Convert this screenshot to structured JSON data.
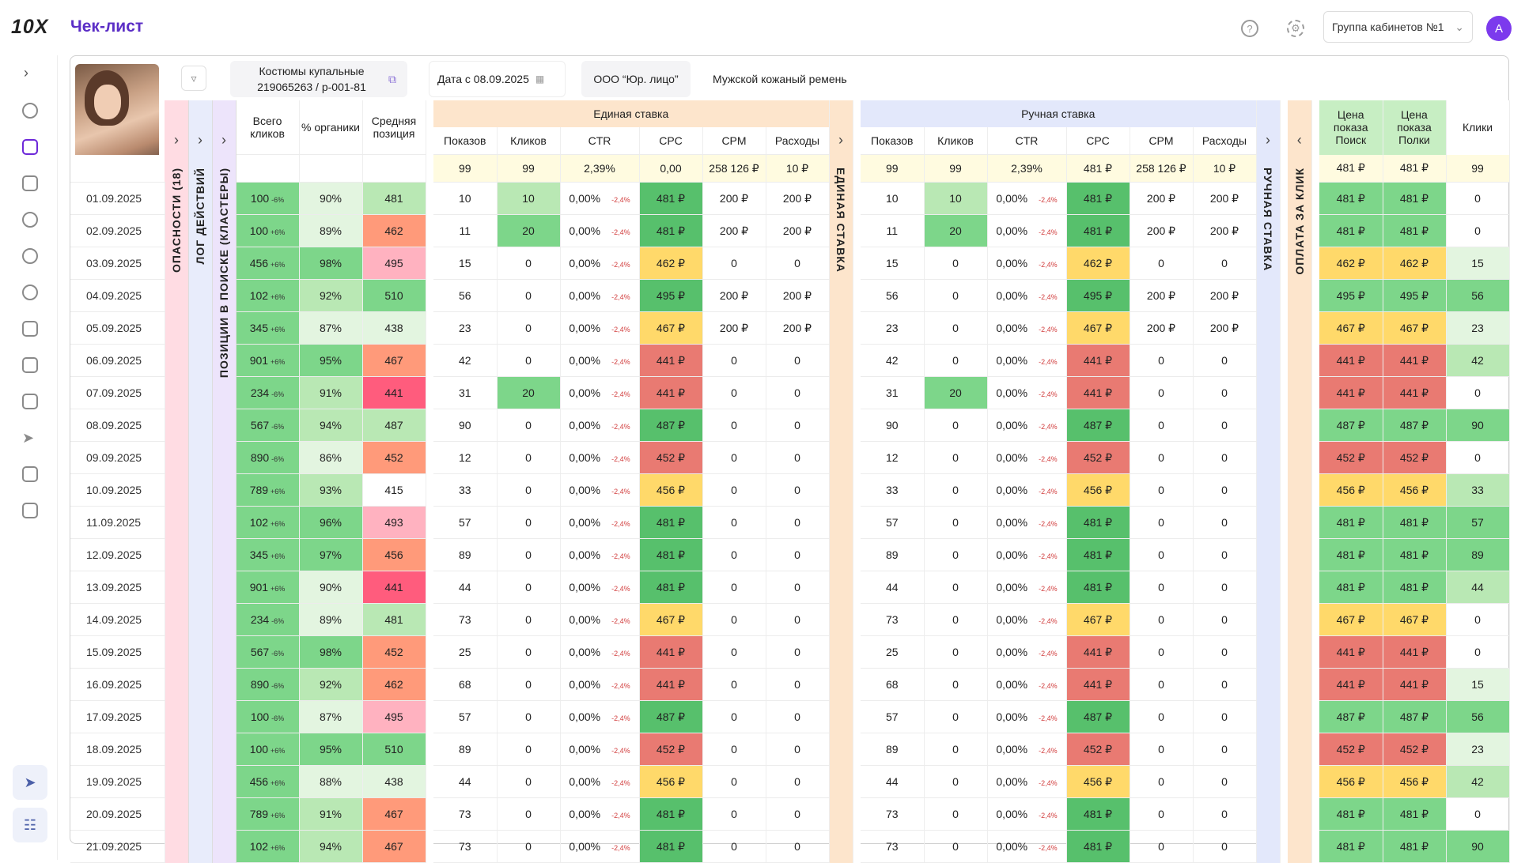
{
  "app": {
    "logo": "10X",
    "title": "Чек-лист"
  },
  "header": {
    "help_icon": "?",
    "settings_icon": "⚙",
    "group_label": "Группа кабинетов №1",
    "avatar_letter": "A"
  },
  "toolbar": {
    "product_name": "Костюмы купальные",
    "product_code": "219065263 / p-001-81",
    "date_prefix": "Дата с",
    "date_value": "08.09.2025",
    "legal_entity": "ООО “Юр. лицо”",
    "product_other": "Мужской кожаный ремень"
  },
  "side_strips": {
    "dangers": "ОПАСНОСТИ (18)",
    "log": "ЛОГ ДЕЙСТВИЙ",
    "positions": "ПОЗИЦИИ В ПОИСКЕ (КЛАСТЕРЫ)"
  },
  "organic": {
    "h_clicks": "Всего кликов",
    "h_organic": "% органики",
    "h_position": "Средняя позиция"
  },
  "unified": {
    "title": "Единая ставка",
    "strip": "ЕДИНАЯ СТАВКА",
    "columns": [
      "Показов",
      "Кликов",
      "CTR",
      "CPC",
      "CPM",
      "Расходы"
    ],
    "totals": [
      "99",
      "99",
      "2,39%",
      "0,00",
      "258 126 ₽",
      "10 ₽"
    ]
  },
  "manual": {
    "title": "Ручная ставка",
    "strip": "РУЧНАЯ СТАВКА",
    "columns": [
      "Показов",
      "Кликов",
      "CTR",
      "CPC",
      "CPM",
      "Расходы"
    ],
    "totals": [
      "99",
      "99",
      "2,39%",
      "481 ₽",
      "258 126 ₽",
      "10 ₽"
    ]
  },
  "cpc": {
    "strip": "ОПЛАТА ЗА КЛИК",
    "h_search": "Цена показа Поиск",
    "h_shelves": "Цена показа Полки",
    "h_clicks": "Клики",
    "totals": [
      "481 ₽",
      "481 ₽",
      "99"
    ]
  },
  "colors": {
    "accent": "#6d28d9",
    "title": "#5b2ec6",
    "unified_bg": "#fde5cc",
    "manual_bg": "#e3e8fb",
    "cpc_strip_bg": "#fde5cc"
  },
  "rows": [
    {
      "date": "01.09.2025",
      "clicks": "100",
      "d": "-6%",
      "org": "90%",
      "pos": "481",
      "u_show": "10",
      "u_click": "10",
      "ctr": "0,00%",
      "ctr_d": "-2,4%",
      "cpc": "481 ₽",
      "cpm": "200 ₽",
      "exp": "200 ₽",
      "m_show": "10",
      "m_click": "10",
      "m_cpc": "481 ₽",
      "m_cpm": "200 ₽",
      "m_exp": "200 ₽",
      "ps": "481 ₽",
      "pp": "481 ₽",
      "kl": "0"
    },
    {
      "date": "02.09.2025",
      "clicks": "100",
      "d": "+6%",
      "org": "89%",
      "pos": "462",
      "u_show": "11",
      "u_click": "20",
      "ctr": "0,00%",
      "ctr_d": "-2,4%",
      "cpc": "481 ₽",
      "cpm": "200 ₽",
      "exp": "200 ₽",
      "m_show": "11",
      "m_click": "20",
      "m_cpc": "481 ₽",
      "m_cpm": "200 ₽",
      "m_exp": "200 ₽",
      "ps": "481 ₽",
      "pp": "481 ₽",
      "kl": "0"
    },
    {
      "date": "03.09.2025",
      "clicks": "456",
      "d": "+6%",
      "org": "98%",
      "pos": "495",
      "u_show": "15",
      "u_click": "0",
      "ctr": "0,00%",
      "ctr_d": "-2,4%",
      "cpc": "462 ₽",
      "cpm": "0",
      "exp": "0",
      "m_show": "15",
      "m_click": "0",
      "m_cpc": "462 ₽",
      "m_cpm": "0",
      "m_exp": "0",
      "ps": "462 ₽",
      "pp": "462 ₽",
      "kl": "15"
    },
    {
      "date": "04.09.2025",
      "clicks": "102",
      "d": "+6%",
      "org": "92%",
      "pos": "510",
      "u_show": "56",
      "u_click": "0",
      "ctr": "0,00%",
      "ctr_d": "-2,4%",
      "cpc": "495 ₽",
      "cpm": "200 ₽",
      "exp": "200 ₽",
      "m_show": "56",
      "m_click": "0",
      "m_cpc": "495 ₽",
      "m_cpm": "200 ₽",
      "m_exp": "200 ₽",
      "ps": "495 ₽",
      "pp": "495 ₽",
      "kl": "56"
    },
    {
      "date": "05.09.2025",
      "clicks": "345",
      "d": "+6%",
      "org": "87%",
      "pos": "438",
      "u_show": "23",
      "u_click": "0",
      "ctr": "0,00%",
      "ctr_d": "-2,4%",
      "cpc": "467 ₽",
      "cpm": "200 ₽",
      "exp": "200 ₽",
      "m_show": "23",
      "m_click": "0",
      "m_cpc": "467 ₽",
      "m_cpm": "200 ₽",
      "m_exp": "200 ₽",
      "ps": "467 ₽",
      "pp": "467 ₽",
      "kl": "23"
    },
    {
      "date": "06.09.2025",
      "clicks": "901",
      "d": "+6%",
      "org": "95%",
      "pos": "467",
      "u_show": "42",
      "u_click": "0",
      "ctr": "0,00%",
      "ctr_d": "-2,4%",
      "cpc": "441 ₽",
      "cpm": "0",
      "exp": "0",
      "m_show": "42",
      "m_click": "0",
      "m_cpc": "441 ₽",
      "m_cpm": "0",
      "m_exp": "0",
      "ps": "441 ₽",
      "pp": "441 ₽",
      "kl": "42"
    },
    {
      "date": "07.09.2025",
      "clicks": "234",
      "d": "-6%",
      "org": "91%",
      "pos": "441",
      "u_show": "31",
      "u_click": "20",
      "ctr": "0,00%",
      "ctr_d": "-2,4%",
      "cpc": "441 ₽",
      "cpm": "0",
      "exp": "0",
      "m_show": "31",
      "m_click": "20",
      "m_cpc": "441 ₽",
      "m_cpm": "0",
      "m_exp": "0",
      "ps": "441 ₽",
      "pp": "441 ₽",
      "kl": "0"
    },
    {
      "date": "08.09.2025",
      "clicks": "567",
      "d": "-6%",
      "org": "94%",
      "pos": "487",
      "u_show": "90",
      "u_click": "0",
      "ctr": "0,00%",
      "ctr_d": "-2,4%",
      "cpc": "487 ₽",
      "cpm": "0",
      "exp": "0",
      "m_show": "90",
      "m_click": "0",
      "m_cpc": "487 ₽",
      "m_cpm": "0",
      "m_exp": "0",
      "ps": "487 ₽",
      "pp": "487 ₽",
      "kl": "90"
    },
    {
      "date": "09.09.2025",
      "clicks": "890",
      "d": "-6%",
      "org": "86%",
      "pos": "452",
      "u_show": "12",
      "u_click": "0",
      "ctr": "0,00%",
      "ctr_d": "-2,4%",
      "cpc": "452 ₽",
      "cpm": "0",
      "exp": "0",
      "m_show": "12",
      "m_click": "0",
      "m_cpc": "452 ₽",
      "m_cpm": "0",
      "m_exp": "0",
      "ps": "452 ₽",
      "pp": "452 ₽",
      "kl": "0"
    },
    {
      "date": "10.09.2025",
      "clicks": "789",
      "d": "+6%",
      "org": "93%",
      "pos": "415",
      "u_show": "33",
      "u_click": "0",
      "ctr": "0,00%",
      "ctr_d": "-2,4%",
      "cpc": "456 ₽",
      "cpm": "0",
      "exp": "0",
      "m_show": "33",
      "m_click": "0",
      "m_cpc": "456 ₽",
      "m_cpm": "0",
      "m_exp": "0",
      "ps": "456 ₽",
      "pp": "456 ₽",
      "kl": "33"
    },
    {
      "date": "11.09.2025",
      "clicks": "102",
      "d": "+6%",
      "org": "96%",
      "pos": "493",
      "u_show": "57",
      "u_click": "0",
      "ctr": "0,00%",
      "ctr_d": "-2,4%",
      "cpc": "481 ₽",
      "cpm": "0",
      "exp": "0",
      "m_show": "57",
      "m_click": "0",
      "m_cpc": "481 ₽",
      "m_cpm": "0",
      "m_exp": "0",
      "ps": "481 ₽",
      "pp": "481 ₽",
      "kl": "57"
    },
    {
      "date": "12.09.2025",
      "clicks": "345",
      "d": "+6%",
      "org": "97%",
      "pos": "456",
      "u_show": "89",
      "u_click": "0",
      "ctr": "0,00%",
      "ctr_d": "-2,4%",
      "cpc": "481 ₽",
      "cpm": "0",
      "exp": "0",
      "m_show": "89",
      "m_click": "0",
      "m_cpc": "481 ₽",
      "m_cpm": "0",
      "m_exp": "0",
      "ps": "481 ₽",
      "pp": "481 ₽",
      "kl": "89"
    },
    {
      "date": "13.09.2025",
      "clicks": "901",
      "d": "+6%",
      "org": "90%",
      "pos": "441",
      "u_show": "44",
      "u_click": "0",
      "ctr": "0,00%",
      "ctr_d": "-2,4%",
      "cpc": "481 ₽",
      "cpm": "0",
      "exp": "0",
      "m_show": "44",
      "m_click": "0",
      "m_cpc": "481 ₽",
      "m_cpm": "0",
      "m_exp": "0",
      "ps": "481 ₽",
      "pp": "481 ₽",
      "kl": "44"
    },
    {
      "date": "14.09.2025",
      "clicks": "234",
      "d": "-6%",
      "org": "89%",
      "pos": "481",
      "u_show": "73",
      "u_click": "0",
      "ctr": "0,00%",
      "ctr_d": "-2,4%",
      "cpc": "467 ₽",
      "cpm": "0",
      "exp": "0",
      "m_show": "73",
      "m_click": "0",
      "m_cpc": "467 ₽",
      "m_cpm": "0",
      "m_exp": "0",
      "ps": "467 ₽",
      "pp": "467 ₽",
      "kl": "0"
    },
    {
      "date": "15.09.2025",
      "clicks": "567",
      "d": "-6%",
      "org": "98%",
      "pos": "452",
      "u_show": "25",
      "u_click": "0",
      "ctr": "0,00%",
      "ctr_d": "-2,4%",
      "cpc": "441 ₽",
      "cpm": "0",
      "exp": "0",
      "m_show": "25",
      "m_click": "0",
      "m_cpc": "441 ₽",
      "m_cpm": "0",
      "m_exp": "0",
      "ps": "441 ₽",
      "pp": "441 ₽",
      "kl": "0"
    },
    {
      "date": "16.09.2025",
      "clicks": "890",
      "d": "-6%",
      "org": "92%",
      "pos": "462",
      "u_show": "68",
      "u_click": "0",
      "ctr": "0,00%",
      "ctr_d": "-2,4%",
      "cpc": "441 ₽",
      "cpm": "0",
      "exp": "0",
      "m_show": "68",
      "m_click": "0",
      "m_cpc": "441 ₽",
      "m_cpm": "0",
      "m_exp": "0",
      "ps": "441 ₽",
      "pp": "441 ₽",
      "kl": "15"
    },
    {
      "date": "17.09.2025",
      "clicks": "100",
      "d": "-6%",
      "org": "87%",
      "pos": "495",
      "u_show": "57",
      "u_click": "0",
      "ctr": "0,00%",
      "ctr_d": "-2,4%",
      "cpc": "487 ₽",
      "cpm": "0",
      "exp": "0",
      "m_show": "57",
      "m_click": "0",
      "m_cpc": "487 ₽",
      "m_cpm": "0",
      "m_exp": "0",
      "ps": "487 ₽",
      "pp": "487 ₽",
      "kl": "56"
    },
    {
      "date": "18.09.2025",
      "clicks": "100",
      "d": "+6%",
      "org": "95%",
      "pos": "510",
      "u_show": "89",
      "u_click": "0",
      "ctr": "0,00%",
      "ctr_d": "-2,4%",
      "cpc": "452 ₽",
      "cpm": "0",
      "exp": "0",
      "m_show": "89",
      "m_click": "0",
      "m_cpc": "452 ₽",
      "m_cpm": "0",
      "m_exp": "0",
      "ps": "452 ₽",
      "pp": "452 ₽",
      "kl": "23"
    },
    {
      "date": "19.09.2025",
      "clicks": "456",
      "d": "+6%",
      "org": "88%",
      "pos": "438",
      "u_show": "44",
      "u_click": "0",
      "ctr": "0,00%",
      "ctr_d": "-2,4%",
      "cpc": "456 ₽",
      "cpm": "0",
      "exp": "0",
      "m_show": "44",
      "m_click": "0",
      "m_cpc": "456 ₽",
      "m_cpm": "0",
      "m_exp": "0",
      "ps": "456 ₽",
      "pp": "456 ₽",
      "kl": "42"
    },
    {
      "date": "20.09.2025",
      "clicks": "789",
      "d": "+6%",
      "org": "91%",
      "pos": "467",
      "u_show": "73",
      "u_click": "0",
      "ctr": "0,00%",
      "ctr_d": "-2,4%",
      "cpc": "481 ₽",
      "cpm": "0",
      "exp": "0",
      "m_show": "73",
      "m_click": "0",
      "m_cpc": "481 ₽",
      "m_cpm": "0",
      "m_exp": "0",
      "ps": "481 ₽",
      "pp": "481 ₽",
      "kl": "0"
    },
    {
      "date": "21.09.2025",
      "clicks": "102",
      "d": "+6%",
      "org": "94%",
      "pos": "467",
      "u_show": "73",
      "u_click": "0",
      "ctr": "0,00%",
      "ctr_d": "-2,4%",
      "cpc": "481 ₽",
      "cpm": "0",
      "exp": "0",
      "m_show": "73",
      "m_click": "0",
      "m_cpc": "481 ₽",
      "m_cpm": "0",
      "m_exp": "0",
      "ps": "481 ₽",
      "pp": "481 ₽",
      "kl": "90"
    }
  ]
}
